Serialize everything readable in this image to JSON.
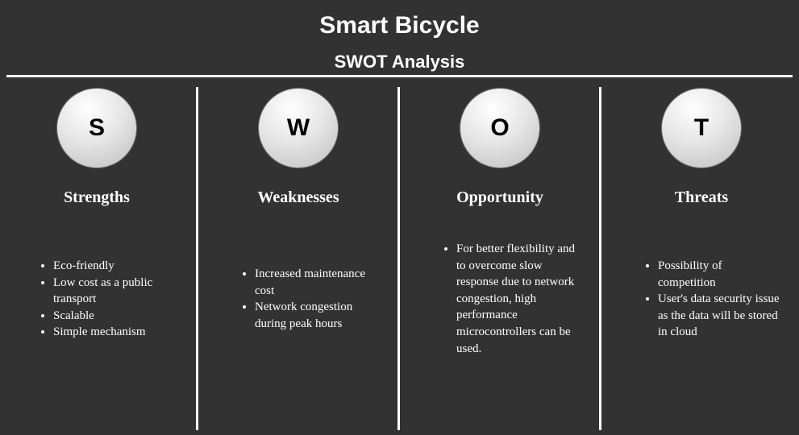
{
  "header": {
    "title": "Smart Bicycle",
    "subtitle": "SWOT Analysis"
  },
  "columns": [
    {
      "letter": "S",
      "heading": "Strengths",
      "items": [
        "Eco-friendly",
        "Low cost as a public transport",
        "Scalable",
        "Simple mechanism"
      ]
    },
    {
      "letter": "W",
      "heading": "Weaknesses",
      "items": [
        "Increased maintenance cost",
        "Network congestion during peak hours"
      ]
    },
    {
      "letter": "O",
      "heading": "Opportunity",
      "items": [
        "For better flexibility and to overcome slow response due to network congestion, high performance microcontrollers can be used."
      ]
    },
    {
      "letter": "T",
      "heading": "Threats",
      "items": [
        "Possibility of competition",
        "User's data security issue as the data will be stored in cloud"
      ]
    }
  ]
}
